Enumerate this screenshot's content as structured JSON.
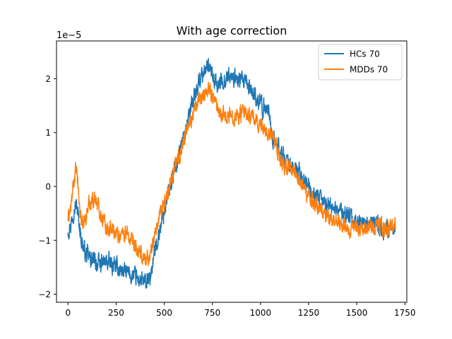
{
  "chart_data": {
    "type": "line",
    "title": "With age correction",
    "xlabel": "",
    "ylabel": "",
    "y_offset_label": "1e−5",
    "xlim": [
      -60,
      1760
    ],
    "ylim": [
      -2.15,
      2.7
    ],
    "x_ticks": [
      0,
      250,
      500,
      750,
      1000,
      1250,
      1500,
      1750
    ],
    "y_ticks": [
      -2,
      -1,
      0,
      1,
      2
    ],
    "y_tick_labels": [
      "−2",
      "−1",
      "0",
      "1",
      "2"
    ],
    "grid": false,
    "legend_position": "top-right",
    "series": [
      {
        "name": "HCs 70",
        "color": "#1f77b4",
        "noise": 0.13,
        "x": [
          0,
          15,
          30,
          45,
          55,
          70,
          90,
          120,
          160,
          200,
          250,
          300,
          350,
          400,
          425,
          445,
          470,
          500,
          530,
          560,
          600,
          640,
          680,
          710,
          740,
          770,
          800,
          830,
          860,
          900,
          940,
          980,
          1010,
          1040,
          1060,
          1080,
          1110,
          1150,
          1200,
          1250,
          1300,
          1350,
          1400,
          1450,
          1500,
          1550,
          1600,
          1650,
          1700
        ],
        "y": [
          -0.8,
          -0.7,
          -0.4,
          -0.35,
          -0.6,
          -1.0,
          -1.25,
          -1.35,
          -1.45,
          -1.4,
          -1.5,
          -1.6,
          -1.7,
          -1.8,
          -1.75,
          -1.3,
          -0.9,
          -0.45,
          0.0,
          0.4,
          0.9,
          1.5,
          1.95,
          2.2,
          2.15,
          1.85,
          1.95,
          2.05,
          2.0,
          1.95,
          1.85,
          1.65,
          1.45,
          1.5,
          0.9,
          0.8,
          0.6,
          0.4,
          0.25,
          -0.05,
          -0.25,
          -0.35,
          -0.4,
          -0.55,
          -0.65,
          -0.75,
          -0.7,
          -0.8,
          -0.85
        ]
      },
      {
        "name": "MDDs 70",
        "color": "#ff7f0e",
        "noise": 0.12,
        "x": [
          0,
          15,
          30,
          40,
          50,
          60,
          75,
          90,
          110,
          140,
          170,
          200,
          230,
          260,
          300,
          340,
          380,
          410,
          430,
          450,
          480,
          510,
          540,
          580,
          620,
          660,
          700,
          730,
          760,
          800,
          850,
          900,
          950,
          1000,
          1030,
          1060,
          1090,
          1120,
          1160,
          1200,
          1250,
          1300,
          1350,
          1400,
          1450,
          1500,
          1550,
          1600,
          1650,
          1700
        ],
        "y": [
          -0.6,
          -0.4,
          0.1,
          0.3,
          0.1,
          -0.4,
          -0.75,
          -0.6,
          -0.3,
          -0.2,
          -0.5,
          -0.75,
          -0.8,
          -0.9,
          -0.85,
          -1.1,
          -1.3,
          -1.35,
          -1.25,
          -0.9,
          -0.5,
          -0.2,
          0.2,
          0.6,
          1.1,
          1.45,
          1.7,
          1.85,
          1.6,
          1.35,
          1.3,
          1.35,
          1.3,
          1.15,
          1.05,
          0.95,
          0.6,
          0.4,
          0.3,
          0.15,
          -0.2,
          -0.4,
          -0.55,
          -0.65,
          -0.75,
          -0.8,
          -0.7,
          -0.75,
          -0.8,
          -0.7
        ]
      }
    ]
  }
}
